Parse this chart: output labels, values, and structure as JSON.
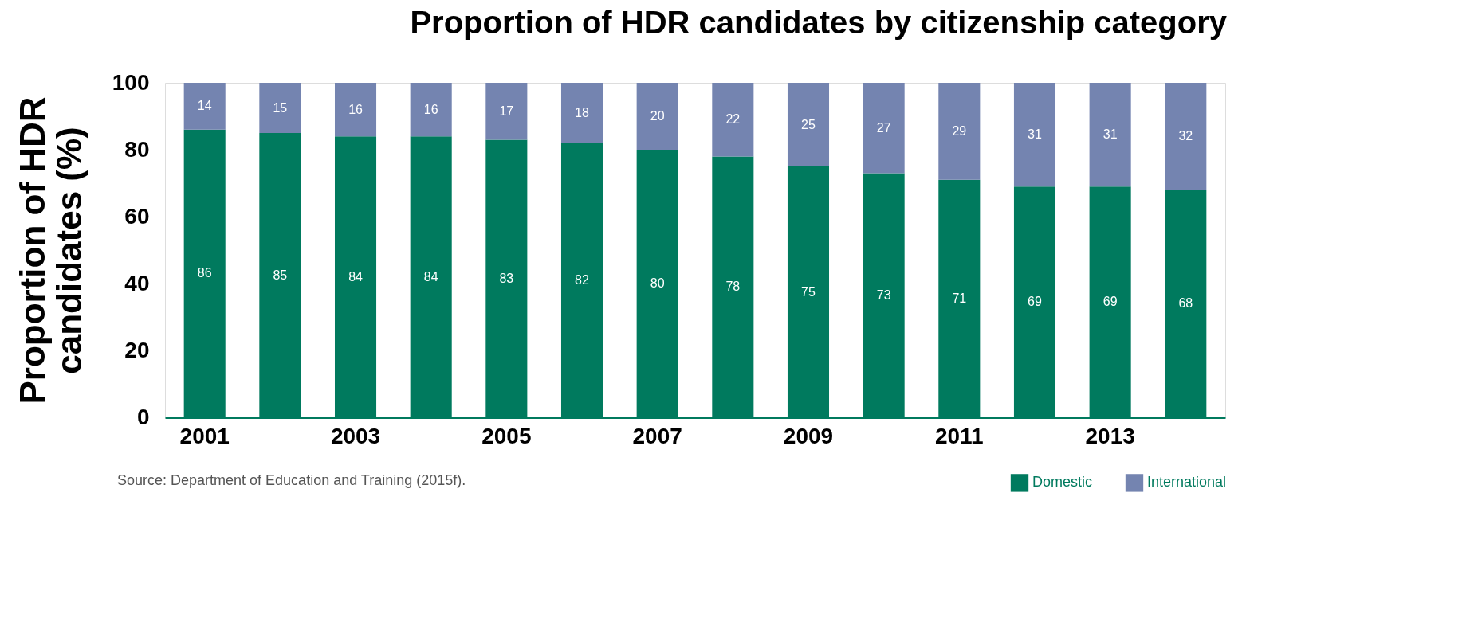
{
  "chart_data": {
    "type": "bar",
    "stacked": true,
    "title": "Proportion of HDR candidates by citizenship category",
    "ylabel": "Proportion of HDR candidates (%)",
    "categories": [
      "2001",
      null,
      "2003",
      null,
      "2005",
      null,
      "2007",
      null,
      "2009",
      null,
      "2011",
      null,
      "2013",
      null
    ],
    "series": [
      {
        "name": "Domestic",
        "color": "#007a5e",
        "values": [
          86,
          85,
          84,
          84,
          83,
          82,
          80,
          78,
          75,
          73,
          71,
          69,
          69,
          68
        ]
      },
      {
        "name": "International",
        "color": "#7484b0",
        "values": [
          14,
          15,
          16,
          16,
          17,
          18,
          20,
          22,
          25,
          27,
          29,
          31,
          31,
          32
        ]
      }
    ],
    "ylim": [
      0,
      100
    ],
    "yticks": [
      0,
      20,
      40,
      60,
      80,
      100
    ],
    "grid": false,
    "data_labels": true,
    "legend": "bottom right",
    "annotations": [
      "Source: Department of Education and Training (2015f)."
    ]
  }
}
